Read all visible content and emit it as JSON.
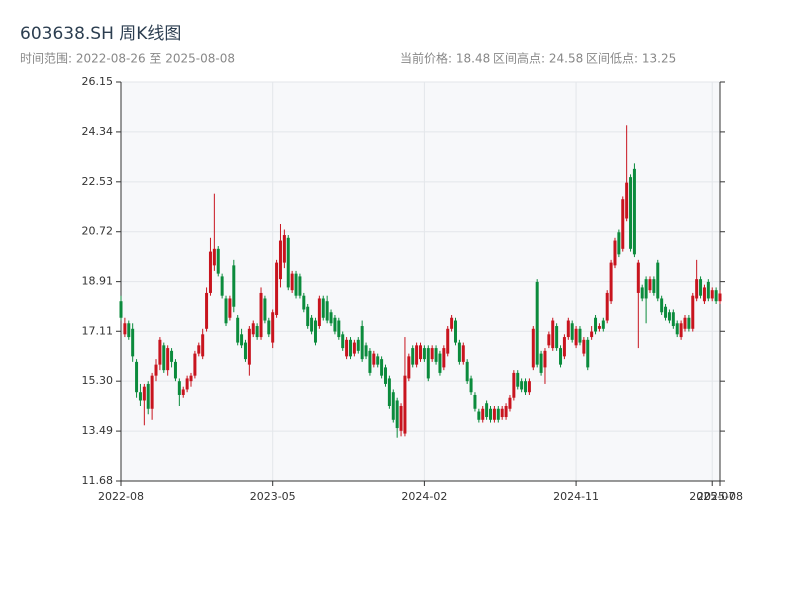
{
  "chart_data": {
    "type": "candlestick",
    "title": "603638.SH 周K线图",
    "subtitle": "时间范围: 2022-08-26 至 2025-08-08",
    "stats": [
      "当前价格: 18.48",
      "区间高点: 24.58",
      "区间低点: 13.25"
    ],
    "up_color": "#c8141e",
    "down_color": "#0b8b3c",
    "grid": true,
    "ylim": [
      11.68,
      26.15
    ],
    "yticks": [
      11.68,
      13.49,
      {
        "value": 15.3,
        "label": "15.30"
      },
      17.11,
      18.91,
      20.72,
      22.53,
      24.34,
      26.15
    ],
    "xlim": [
      "2022-08-26",
      "2025-08-08"
    ],
    "xticks": [
      {
        "value": "2022-08-26",
        "label": "2022-08"
      },
      {
        "value": "2023-05-26",
        "label": "2023-05"
      },
      {
        "value": "2024-02-23",
        "label": "2024-02"
      },
      {
        "value": "2024-11-22",
        "label": "2024-11"
      },
      {
        "value": "2025-07-25",
        "label": "2025-07"
      },
      {
        "value": "2025-08-08",
        "label": "2025-08"
      }
    ],
    "x": [
      "2022-08-26",
      "2022-09-02",
      "2022-09-09",
      "2022-09-16",
      "2022-09-23",
      "2022-09-30",
      "2022-10-07",
      "2022-10-14",
      "2022-10-21",
      "2022-10-28",
      "2022-11-04",
      "2022-11-11",
      "2022-11-18",
      "2022-11-25",
      "2022-12-02",
      "2022-12-09",
      "2022-12-16",
      "2022-12-23",
      "2022-12-30",
      "2023-01-06",
      "2023-01-13",
      "2023-01-20",
      "2023-01-27",
      "2023-02-03",
      "2023-02-10",
      "2023-02-17",
      "2023-02-24",
      "2023-03-03",
      "2023-03-10",
      "2023-03-17",
      "2023-03-24",
      "2023-03-31",
      "2023-04-07",
      "2023-04-14",
      "2023-04-21",
      "2023-04-28",
      "2023-05-05",
      "2023-05-12",
      "2023-05-19",
      "2023-05-26",
      "2023-06-02",
      "2023-06-09",
      "2023-06-16",
      "2023-06-23",
      "2023-06-30",
      "2023-07-07",
      "2023-07-14",
      "2023-07-21",
      "2023-07-28",
      "2023-08-04",
      "2023-08-11",
      "2023-08-18",
      "2023-08-25",
      "2023-09-01",
      "2023-09-08",
      "2023-09-15",
      "2023-09-22",
      "2023-09-29",
      "2023-10-06",
      "2023-10-13",
      "2023-10-20",
      "2023-10-27",
      "2023-11-03",
      "2023-11-10",
      "2023-11-17",
      "2023-11-24",
      "2023-12-01",
      "2023-12-08",
      "2023-12-15",
      "2023-12-22",
      "2023-12-29",
      "2024-01-05",
      "2024-01-12",
      "2024-01-19",
      "2024-01-26",
      "2024-02-02",
      "2024-02-09",
      "2024-02-16",
      "2024-02-23",
      "2024-03-01",
      "2024-03-08",
      "2024-03-15",
      "2024-03-22",
      "2024-03-29",
      "2024-04-05",
      "2024-04-12",
      "2024-04-19",
      "2024-04-26",
      "2024-05-03",
      "2024-05-10",
      "2024-05-17",
      "2024-05-24",
      "2024-05-31",
      "2024-06-07",
      "2024-06-14",
      "2024-06-21",
      "2024-06-28",
      "2024-07-05",
      "2024-07-12",
      "2024-07-19",
      "2024-07-26",
      "2024-08-02",
      "2024-08-09",
      "2024-08-16",
      "2024-08-23",
      "2024-08-30",
      "2024-09-06",
      "2024-09-13",
      "2024-09-20",
      "2024-09-27",
      "2024-10-04",
      "2024-10-11",
      "2024-10-18",
      "2024-10-25",
      "2024-11-01",
      "2024-11-08",
      "2024-11-15",
      "2024-11-22",
      "2024-11-29",
      "2024-12-06",
      "2024-12-13",
      "2024-12-20",
      "2024-12-27",
      "2025-01-03",
      "2025-01-10",
      "2025-01-17",
      "2025-01-24",
      "2025-01-31",
      "2025-02-07",
      "2025-02-14",
      "2025-02-21",
      "2025-02-28",
      "2025-03-07",
      "2025-03-14",
      "2025-03-21",
      "2025-03-28",
      "2025-04-04",
      "2025-04-11",
      "2025-04-18",
      "2025-04-25",
      "2025-05-02",
      "2025-05-09",
      "2025-05-16",
      "2025-05-23",
      "2025-05-30",
      "2025-06-06",
      "2025-06-13",
      "2025-06-20",
      "2025-06-27",
      "2025-07-04",
      "2025-07-11",
      "2025-07-18",
      "2025-07-25",
      "2025-08-01",
      "2025-08-08"
    ],
    "ohlc": [
      [
        18.2,
        18.4,
        17.5,
        17.6
      ],
      [
        17.0,
        17.6,
        16.9,
        17.4
      ],
      [
        17.4,
        17.5,
        16.8,
        16.9
      ],
      [
        17.2,
        17.4,
        16.0,
        16.2
      ],
      [
        16.0,
        16.1,
        14.7,
        14.9
      ],
      [
        14.9,
        15.2,
        14.4,
        14.6
      ],
      [
        14.6,
        15.2,
        13.7,
        15.1
      ],
      [
        15.2,
        15.3,
        14.1,
        14.3
      ],
      [
        14.3,
        15.6,
        13.9,
        15.5
      ],
      [
        15.5,
        16.1,
        15.3,
        15.9
      ],
      [
        15.9,
        16.9,
        15.7,
        16.8
      ],
      [
        16.6,
        16.7,
        15.6,
        15.7
      ],
      [
        15.7,
        16.6,
        15.5,
        16.5
      ],
      [
        16.4,
        16.5,
        15.8,
        16.0
      ],
      [
        16.0,
        16.1,
        15.3,
        15.4
      ],
      [
        15.3,
        15.4,
        14.4,
        14.8
      ],
      [
        14.8,
        15.1,
        14.7,
        15.0
      ],
      [
        15.0,
        15.5,
        14.9,
        15.4
      ],
      [
        15.3,
        15.6,
        15.1,
        15.5
      ],
      [
        15.5,
        16.4,
        15.4,
        16.3
      ],
      [
        16.3,
        16.7,
        16.2,
        16.6
      ],
      [
        16.2,
        17.2,
        16.1,
        17.0
      ],
      [
        17.2,
        18.7,
        17.1,
        18.5
      ],
      [
        18.5,
        20.5,
        18.4,
        20.0
      ],
      [
        19.5,
        22.1,
        19.3,
        20.1
      ],
      [
        20.1,
        20.2,
        19.1,
        19.2
      ],
      [
        19.1,
        19.2,
        18.3,
        18.4
      ],
      [
        18.3,
        18.4,
        17.3,
        17.4
      ],
      [
        17.6,
        18.4,
        17.5,
        18.3
      ],
      [
        19.5,
        19.7,
        17.8,
        18.0
      ],
      [
        17.6,
        17.7,
        16.6,
        16.7
      ],
      [
        17.0,
        17.2,
        16.5,
        16.6
      ],
      [
        16.7,
        16.8,
        16.0,
        16.1
      ],
      [
        15.9,
        17.3,
        15.5,
        17.2
      ],
      [
        17.0,
        17.5,
        16.9,
        17.4
      ],
      [
        17.3,
        17.4,
        16.8,
        16.9
      ],
      [
        16.9,
        18.7,
        16.8,
        18.5
      ],
      [
        18.3,
        18.4,
        17.4,
        17.5
      ],
      [
        17.5,
        17.6,
        16.9,
        17.0
      ],
      [
        16.7,
        17.9,
        16.5,
        17.8
      ],
      [
        17.7,
        19.7,
        17.6,
        19.6
      ],
      [
        19.0,
        21.0,
        18.7,
        20.4
      ],
      [
        19.6,
        20.8,
        19.4,
        20.6
      ],
      [
        20.5,
        20.6,
        18.6,
        18.7
      ],
      [
        18.6,
        19.3,
        18.5,
        19.2
      ],
      [
        19.2,
        19.3,
        18.3,
        18.4
      ],
      [
        19.1,
        19.2,
        18.3,
        18.4
      ],
      [
        18.4,
        18.5,
        17.8,
        17.9
      ],
      [
        18.0,
        18.1,
        17.2,
        17.3
      ],
      [
        17.6,
        17.7,
        17.0,
        17.1
      ],
      [
        17.5,
        17.6,
        16.6,
        16.7
      ],
      [
        17.3,
        18.4,
        17.2,
        18.3
      ],
      [
        18.3,
        18.4,
        17.5,
        17.6
      ],
      [
        18.2,
        18.4,
        17.4,
        17.5
      ],
      [
        17.8,
        17.9,
        17.3,
        17.4
      ],
      [
        17.6,
        17.7,
        17.0,
        17.1
      ],
      [
        17.5,
        17.6,
        16.8,
        16.9
      ],
      [
        17.0,
        17.1,
        16.4,
        16.5
      ],
      [
        16.2,
        16.9,
        16.1,
        16.8
      ],
      [
        16.8,
        16.9,
        16.1,
        16.2
      ],
      [
        16.3,
        16.8,
        16.2,
        16.7
      ],
      [
        16.8,
        16.9,
        16.3,
        16.4
      ],
      [
        17.3,
        17.5,
        16.0,
        16.1
      ],
      [
        16.6,
        16.7,
        16.1,
        16.2
      ],
      [
        16.4,
        16.5,
        15.5,
        15.6
      ],
      [
        15.9,
        16.4,
        15.8,
        16.3
      ],
      [
        16.2,
        16.3,
        15.8,
        15.9
      ],
      [
        16.1,
        16.2,
        15.4,
        15.5
      ],
      [
        15.8,
        15.9,
        15.1,
        15.2
      ],
      [
        15.4,
        15.5,
        14.3,
        14.4
      ],
      [
        14.9,
        15.0,
        13.8,
        13.9
      ],
      [
        14.6,
        14.7,
        13.25,
        13.6
      ],
      [
        13.5,
        14.5,
        13.3,
        14.4
      ],
      [
        13.4,
        16.9,
        13.3,
        15.5
      ],
      [
        15.4,
        16.3,
        15.3,
        16.2
      ],
      [
        16.5,
        16.6,
        15.8,
        15.9
      ],
      [
        15.9,
        16.7,
        15.8,
        16.6
      ],
      [
        16.1,
        16.7,
        16.0,
        16.6
      ],
      [
        16.5,
        16.6,
        16.0,
        16.1
      ],
      [
        16.5,
        16.6,
        15.3,
        15.4
      ],
      [
        16.1,
        16.6,
        16.0,
        16.5
      ],
      [
        16.5,
        16.6,
        15.9,
        16.0
      ],
      [
        16.3,
        16.4,
        15.5,
        15.6
      ],
      [
        15.8,
        16.6,
        15.7,
        16.5
      ],
      [
        16.3,
        17.3,
        16.2,
        17.2
      ],
      [
        17.2,
        17.7,
        17.1,
        17.6
      ],
      [
        17.5,
        17.6,
        16.6,
        16.7
      ],
      [
        16.7,
        16.8,
        15.9,
        16.0
      ],
      [
        16.0,
        16.7,
        15.9,
        16.6
      ],
      [
        16.0,
        16.1,
        15.2,
        15.3
      ],
      [
        15.4,
        15.5,
        14.8,
        14.9
      ],
      [
        14.8,
        14.9,
        14.2,
        14.3
      ],
      [
        14.2,
        14.3,
        13.8,
        13.9
      ],
      [
        13.9,
        14.4,
        13.8,
        14.3
      ],
      [
        14.5,
        14.6,
        13.9,
        14.0
      ],
      [
        14.3,
        14.4,
        13.8,
        13.9
      ],
      [
        13.9,
        14.4,
        13.8,
        14.3
      ],
      [
        14.3,
        14.4,
        13.8,
        13.9
      ],
      [
        14.0,
        14.4,
        13.9,
        14.3
      ],
      [
        14.0,
        14.5,
        13.9,
        14.4
      ],
      [
        14.3,
        14.8,
        14.2,
        14.7
      ],
      [
        14.7,
        15.7,
        14.6,
        15.6
      ],
      [
        15.6,
        15.7,
        15.0,
        15.1
      ],
      [
        15.3,
        15.4,
        14.9,
        15.0
      ],
      [
        15.3,
        15.4,
        14.8,
        14.9
      ],
      [
        14.9,
        15.4,
        14.8,
        15.3
      ],
      [
        15.8,
        17.3,
        15.7,
        17.2
      ],
      [
        18.9,
        19.0,
        15.8,
        15.9
      ],
      [
        16.3,
        16.4,
        15.5,
        15.6
      ],
      [
        15.8,
        16.5,
        15.2,
        16.4
      ],
      [
        16.6,
        17.1,
        16.5,
        17.0
      ],
      [
        16.5,
        17.6,
        16.4,
        17.5
      ],
      [
        17.3,
        17.4,
        16.4,
        16.5
      ],
      [
        16.5,
        16.6,
        15.8,
        15.9
      ],
      [
        16.2,
        17.0,
        16.1,
        16.9
      ],
      [
        16.9,
        17.6,
        16.8,
        17.5
      ],
      [
        17.4,
        17.5,
        16.7,
        16.8
      ],
      [
        16.6,
        17.3,
        16.5,
        17.2
      ],
      [
        17.2,
        17.3,
        16.6,
        16.7
      ],
      [
        16.3,
        16.9,
        16.2,
        16.8
      ],
      [
        16.8,
        16.9,
        15.7,
        15.8
      ],
      [
        16.9,
        17.3,
        16.8,
        17.1
      ],
      [
        17.6,
        17.7,
        17.0,
        17.1
      ],
      [
        17.2,
        17.4,
        17.1,
        17.3
      ],
      [
        17.5,
        17.6,
        17.1,
        17.2
      ],
      [
        17.5,
        18.6,
        17.4,
        18.5
      ],
      [
        18.2,
        19.7,
        18.1,
        19.6
      ],
      [
        19.5,
        20.5,
        19.4,
        20.4
      ],
      [
        20.7,
        20.8,
        19.8,
        19.9
      ],
      [
        20.1,
        22.0,
        20.0,
        21.9
      ],
      [
        21.2,
        24.58,
        21.1,
        22.5
      ],
      [
        22.7,
        22.8,
        20.0,
        20.1
      ],
      [
        23.0,
        23.2,
        19.8,
        19.9
      ],
      [
        18.5,
        19.7,
        16.5,
        19.6
      ],
      [
        18.7,
        18.8,
        18.2,
        18.3
      ],
      [
        19.0,
        19.1,
        17.4,
        18.3
      ],
      [
        18.6,
        19.1,
        18.5,
        19.0
      ],
      [
        19.0,
        19.1,
        18.4,
        18.5
      ],
      [
        19.6,
        19.7,
        18.2,
        18.3
      ],
      [
        18.3,
        18.4,
        17.7,
        17.8
      ],
      [
        18.0,
        18.1,
        17.5,
        17.6
      ],
      [
        17.8,
        17.9,
        17.4,
        17.5
      ],
      [
        17.8,
        17.9,
        17.2,
        17.3
      ],
      [
        17.4,
        17.5,
        16.9,
        17.0
      ],
      [
        16.9,
        17.5,
        16.8,
        17.4
      ],
      [
        17.2,
        17.7,
        17.1,
        17.6
      ],
      [
        17.6,
        17.7,
        17.1,
        17.2
      ],
      [
        17.2,
        18.5,
        17.1,
        18.4
      ],
      [
        18.3,
        19.7,
        18.2,
        19.0
      ],
      [
        19.0,
        19.1,
        18.3,
        18.4
      ],
      [
        18.2,
        18.8,
        18.1,
        18.7
      ],
      [
        18.9,
        19.0,
        18.2,
        18.3
      ],
      [
        18.3,
        18.7,
        18.2,
        18.6
      ],
      [
        18.6,
        18.7,
        18.1,
        18.2
      ],
      [
        18.2,
        18.6,
        18.1,
        18.48
      ]
    ]
  }
}
